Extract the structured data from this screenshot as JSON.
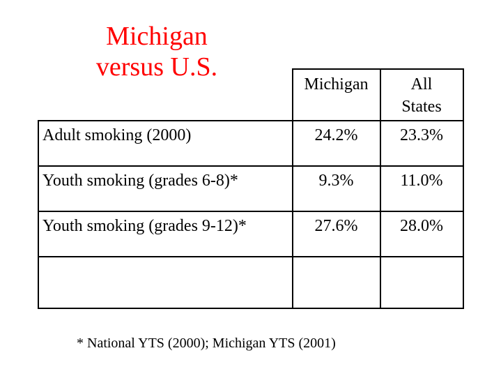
{
  "title": {
    "line1": "Michigan",
    "line2": "versus U.S.",
    "color": "#ff0000"
  },
  "table": {
    "headers": [
      "Michigan",
      "All",
      "States"
    ],
    "rows": [
      {
        "label": "Adult smoking (2000)",
        "michigan": "24.2%",
        "all_states": "23.3%"
      },
      {
        "label": "Youth smoking (grades 6-8)*",
        "michigan": "9.3%",
        "all_states": "11.0%"
      },
      {
        "label": "Youth smoking (grades 9-12)*",
        "michigan": "27.6%",
        "all_states": "28.0%"
      },
      {
        "label": "",
        "michigan": "",
        "all_states": ""
      }
    ]
  },
  "footnote": "* National YTS (2000); Michigan YTS (2001)"
}
